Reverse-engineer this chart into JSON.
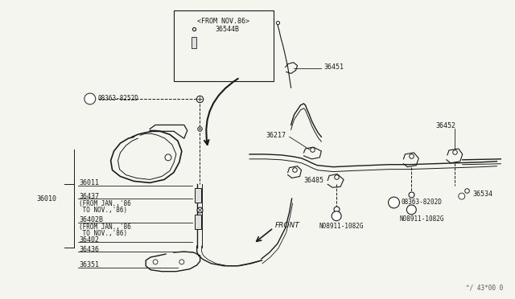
{
  "bg_color": "#f5f5f0",
  "line_color": "#1a1a1a",
  "label_color": "#1a1a1a",
  "fig_width": 6.4,
  "fig_height": 3.72,
  "watermark": "^/ 43*00 0",
  "inset_label": "<FROM NOV.86>",
  "inset_part": "36544B",
  "front_label": "FRONT"
}
